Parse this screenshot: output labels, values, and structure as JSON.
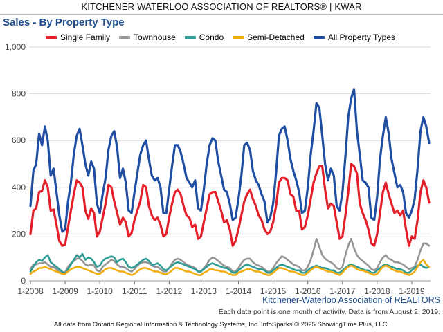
{
  "header": {
    "banner": "KITCHENER WATERLOO ASSOCIATION OF REALTORS® | KWAR"
  },
  "footer": {
    "org": "Kitchener-Waterloo Association of REALTORS",
    "note": "Each data point is one month of activity. Data is from August 2, 2019.",
    "source": "All data from Ontario Regional Information & Technology Systems, Inc. InfoSparks © 2025 ShowingTime Plus, LLC."
  },
  "colors": {
    "single_family": "#e3202a",
    "townhouse": "#959595",
    "condo": "#2e9d95",
    "semi_detached": "#f0ae10",
    "all": "#1f4ea3",
    "grid": "#d9d9d9",
    "axis_text": "#444444"
  },
  "chart_data": {
    "type": "line",
    "title": "Sales - By Property Type",
    "xlabel": "",
    "ylabel": "",
    "ylim": [
      0,
      1000
    ],
    "yticks": [
      0,
      200,
      400,
      600,
      800,
      1000
    ],
    "ytick_labels": [
      "0",
      "200",
      "400",
      "600",
      "800",
      "1,000"
    ],
    "xtick_labels": [
      "1-2008",
      "1-2009",
      "1-2010",
      "1-2011",
      "1-2012",
      "1-2013",
      "1-2014",
      "1-2015",
      "1-2016",
      "1-2017",
      "1-2018",
      "1-2019"
    ],
    "grid": true,
    "legend_position": "top",
    "x_start": "1-2008",
    "x_end": "7-2019",
    "series": [
      {
        "name": "Single Family",
        "color_key": "single_family",
        "values": [
          200,
          300,
          310,
          380,
          385,
          430,
          400,
          300,
          305,
          240,
          170,
          150,
          155,
          230,
          300,
          370,
          430,
          420,
          400,
          300,
          265,
          310,
          290,
          190,
          210,
          270,
          330,
          410,
          400,
          340,
          290,
          240,
          270,
          250,
          190,
          205,
          260,
          300,
          340,
          410,
          400,
          320,
          280,
          260,
          270,
          240,
          190,
          200,
          270,
          330,
          380,
          390,
          370,
          320,
          280,
          270,
          230,
          240,
          180,
          190,
          250,
          310,
          370,
          380,
          380,
          340,
          300,
          250,
          260,
          220,
          150,
          170,
          220,
          280,
          340,
          370,
          390,
          350,
          320,
          280,
          260,
          220,
          200,
          210,
          250,
          320,
          420,
          440,
          440,
          430,
          370,
          360,
          300,
          300,
          220,
          230,
          280,
          350,
          420,
          460,
          490,
          490,
          390,
          310,
          330,
          320,
          250,
          180,
          190,
          280,
          380,
          500,
          490,
          460,
          330,
          290,
          260,
          220,
          160,
          150,
          200,
          290,
          380,
          420,
          370,
          330,
          290,
          300,
          280,
          300,
          220,
          150,
          190,
          180,
          260,
          380,
          430,
          400,
          335
        ]
      },
      {
        "name": "Townhouse",
        "color_key": "townhouse",
        "values": [
          50,
          70,
          70,
          75,
          75,
          80,
          70,
          60,
          60,
          50,
          40,
          35,
          38,
          60,
          75,
          85,
          95,
          95,
          85,
          70,
          65,
          70,
          65,
          45,
          40,
          60,
          70,
          80,
          90,
          85,
          70,
          60,
          60,
          55,
          45,
          40,
          50,
          65,
          75,
          80,
          80,
          75,
          65,
          60,
          60,
          50,
          40,
          40,
          55,
          75,
          90,
          95,
          90,
          80,
          70,
          65,
          60,
          55,
          40,
          40,
          55,
          70,
          90,
          100,
          95,
          85,
          75,
          65,
          60,
          55,
          40,
          40,
          55,
          75,
          90,
          95,
          95,
          80,
          70,
          65,
          60,
          50,
          40,
          40,
          55,
          75,
          90,
          105,
          100,
          90,
          80,
          70,
          65,
          60,
          45,
          45,
          60,
          90,
          130,
          180,
          145,
          110,
          95,
          85,
          80,
          70,
          55,
          50,
          60,
          110,
          150,
          180,
          140,
          110,
          95,
          85,
          75,
          65,
          50,
          45,
          55,
          80,
          100,
          110,
          95,
          90,
          80,
          80,
          75,
          70,
          60,
          50,
          55,
          60,
          90,
          130,
          160,
          160,
          150
        ]
      },
      {
        "name": "Condo",
        "color_key": "condo",
        "values": [
          40,
          60,
          80,
          90,
          85,
          100,
          110,
          80,
          70,
          60,
          50,
          40,
          30,
          50,
          70,
          90,
          110,
          100,
          115,
          90,
          100,
          95,
          80,
          60,
          65,
          85,
          95,
          100,
          105,
          100,
          80,
          90,
          95,
          80,
          60,
          55,
          60,
          70,
          80,
          90,
          95,
          85,
          70,
          70,
          75,
          65,
          50,
          45,
          55,
          65,
          75,
          80,
          75,
          70,
          65,
          60,
          55,
          50,
          40,
          40,
          50,
          60,
          70,
          75,
          70,
          65,
          60,
          55,
          55,
          45,
          35,
          35,
          45,
          55,
          65,
          70,
          65,
          60,
          55,
          50,
          50,
          45,
          35,
          35,
          45,
          55,
          65,
          70,
          65,
          60,
          55,
          50,
          45,
          45,
          35,
          35,
          45,
          55,
          60,
          65,
          60,
          55,
          55,
          50,
          45,
          45,
          35,
          35,
          45,
          55,
          65,
          70,
          65,
          60,
          55,
          50,
          45,
          45,
          35,
          35,
          45,
          55,
          65,
          70,
          65,
          60,
          55,
          50,
          50,
          45,
          35,
          35,
          45,
          55,
          65,
          70,
          60,
          55,
          60
        ]
      },
      {
        "name": "Semi-Detached",
        "color_key": "semi_detached",
        "values": [
          30,
          40,
          45,
          55,
          55,
          60,
          55,
          50,
          45,
          40,
          35,
          30,
          30,
          40,
          50,
          55,
          60,
          60,
          55,
          50,
          45,
          40,
          35,
          30,
          30,
          40,
          50,
          55,
          55,
          50,
          45,
          40,
          40,
          35,
          30,
          25,
          30,
          40,
          50,
          55,
          55,
          50,
          45,
          40,
          40,
          35,
          30,
          28,
          35,
          45,
          55,
          55,
          50,
          45,
          40,
          40,
          35,
          30,
          25,
          25,
          35,
          40,
          50,
          50,
          45,
          45,
          40,
          40,
          35,
          30,
          25,
          25,
          35,
          40,
          45,
          50,
          50,
          45,
          40,
          40,
          35,
          30,
          25,
          25,
          35,
          45,
          55,
          55,
          50,
          45,
          40,
          40,
          35,
          30,
          25,
          25,
          35,
          45,
          55,
          60,
          55,
          50,
          45,
          40,
          40,
          35,
          30,
          25,
          35,
          50,
          60,
          65,
          60,
          50,
          45,
          45,
          40,
          35,
          30,
          25,
          30,
          45,
          60,
          65,
          60,
          50,
          45,
          40,
          40,
          35,
          30,
          25,
          30,
          40,
          60,
          80,
          90,
          70,
          60
        ]
      },
      {
        "name": "All Property Types",
        "color_key": "all",
        "values": [
          320,
          470,
          500,
          630,
          580,
          660,
          600,
          450,
          480,
          380,
          280,
          210,
          220,
          340,
          420,
          540,
          620,
          650,
          580,
          500,
          450,
          510,
          480,
          330,
          290,
          370,
          440,
          560,
          620,
          640,
          570,
          440,
          480,
          420,
          300,
          290,
          380,
          460,
          540,
          580,
          600,
          520,
          450,
          430,
          440,
          400,
          290,
          290,
          390,
          490,
          580,
          580,
          550,
          500,
          440,
          420,
          400,
          430,
          310,
          300,
          390,
          500,
          580,
          610,
          600,
          510,
          450,
          390,
          380,
          330,
          260,
          270,
          350,
          450,
          580,
          590,
          560,
          470,
          430,
          410,
          370,
          340,
          250,
          270,
          330,
          460,
          620,
          650,
          660,
          600,
          520,
          470,
          430,
          380,
          290,
          300,
          400,
          540,
          640,
          760,
          740,
          620,
          500,
          430,
          480,
          450,
          320,
          300,
          380,
          530,
          700,
          780,
          820,
          640,
          540,
          430,
          420,
          400,
          270,
          260,
          360,
          520,
          620,
          700,
          630,
          520,
          460,
          400,
          410,
          380,
          290,
          270,
          300,
          350,
          480,
          640,
          700,
          660,
          590
        ]
      }
    ]
  }
}
